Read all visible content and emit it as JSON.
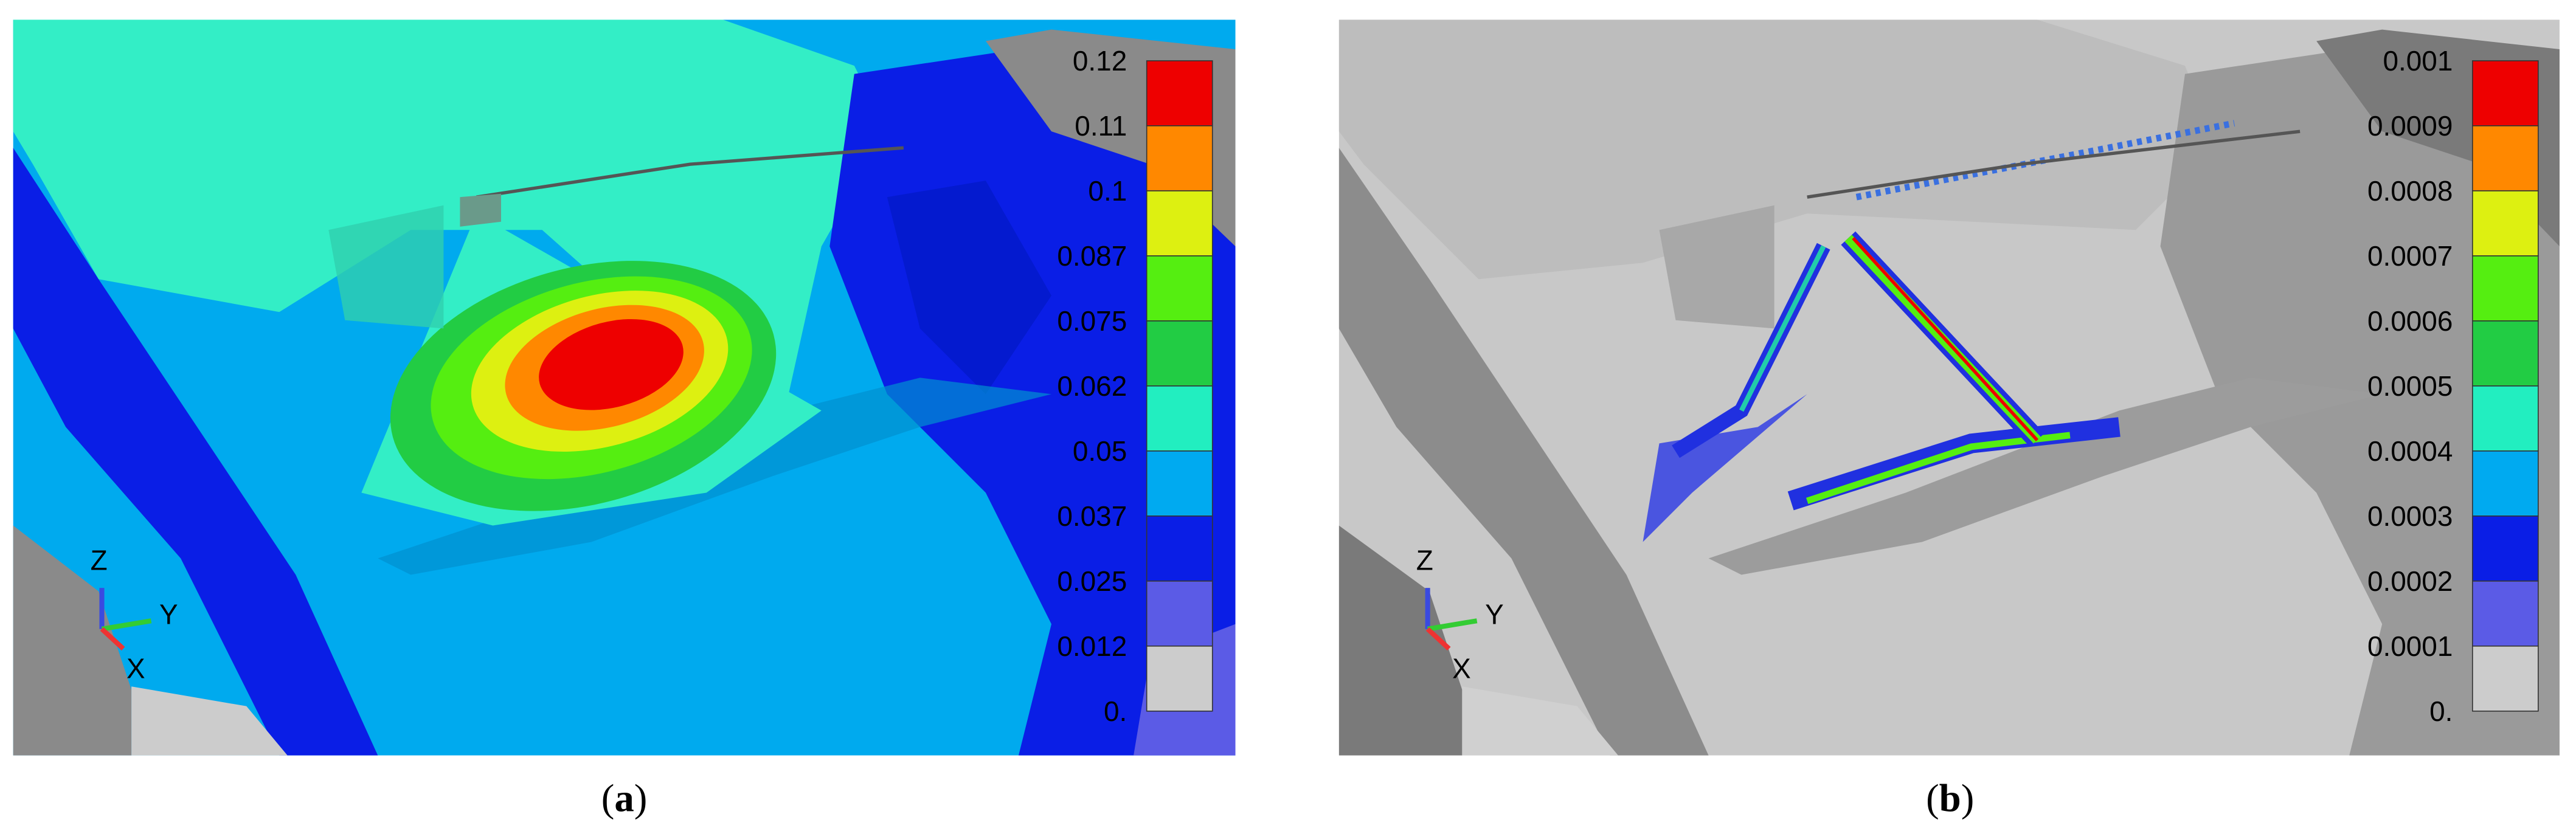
{
  "panels": [
    {
      "caption": [
        "(",
        "a",
        ")"
      ],
      "triad": {
        "z": "Z",
        "y": "Y",
        "x": "X"
      },
      "legend": {
        "labels": [
          "0.12",
          "0.11",
          "0.1",
          "0.087",
          "0.075",
          "0.062",
          "0.05",
          "0.037",
          "0.025",
          "0.012",
          "0."
        ],
        "colors": [
          "#ee0000",
          "#ff8800",
          "#ddf011",
          "#55ee11",
          "#22cc44",
          "#22eec0",
          "#00aaf0",
          "#0a1ee6",
          "#5b5be6",
          "#cccccc"
        ]
      }
    },
    {
      "caption": [
        "(",
        "b",
        ")"
      ],
      "triad": {
        "z": "Z",
        "y": "Y",
        "x": "X"
      },
      "legend": {
        "labels": [
          "0.001",
          "0.0009",
          "0.0008",
          "0.0007",
          "0.0006",
          "0.0005",
          "0.0004",
          "0.0003",
          "0.0002",
          "0.0001",
          "0."
        ],
        "colors": [
          "#ee0000",
          "#ff8800",
          "#ddf011",
          "#55ee11",
          "#22cc44",
          "#22eec0",
          "#00aaf0",
          "#0a1ee6",
          "#5b5be6",
          "#cccccc"
        ]
      }
    }
  ]
}
